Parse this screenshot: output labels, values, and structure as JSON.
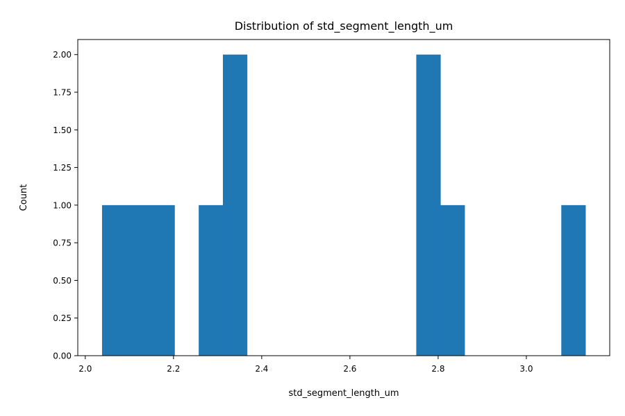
{
  "chart_data": {
    "type": "bar",
    "title": "Distribution of std_segment_length_um",
    "xlabel": "std_segment_length_um",
    "ylabel": "Count",
    "bins": [
      {
        "x0": 2.038,
        "x1": 2.0928,
        "count": 1
      },
      {
        "x0": 2.0928,
        "x1": 2.1476,
        "count": 1
      },
      {
        "x0": 2.1476,
        "x1": 2.2024,
        "count": 1
      },
      {
        "x0": 2.2024,
        "x1": 2.2572,
        "count": 0
      },
      {
        "x0": 2.2572,
        "x1": 2.312,
        "count": 1
      },
      {
        "x0": 2.312,
        "x1": 2.3668,
        "count": 2
      },
      {
        "x0": 2.3668,
        "x1": 2.4216,
        "count": 0
      },
      {
        "x0": 2.4216,
        "x1": 2.4764,
        "count": 0
      },
      {
        "x0": 2.4764,
        "x1": 2.5312,
        "count": 0
      },
      {
        "x0": 2.5312,
        "x1": 2.586,
        "count": 0
      },
      {
        "x0": 2.586,
        "x1": 2.6408,
        "count": 0
      },
      {
        "x0": 2.6408,
        "x1": 2.6956,
        "count": 0
      },
      {
        "x0": 2.6956,
        "x1": 2.7504,
        "count": 0
      },
      {
        "x0": 2.7504,
        "x1": 2.8052,
        "count": 2
      },
      {
        "x0": 2.8052,
        "x1": 2.86,
        "count": 1
      },
      {
        "x0": 2.86,
        "x1": 2.9148,
        "count": 0
      },
      {
        "x0": 2.9148,
        "x1": 2.9696,
        "count": 0
      },
      {
        "x0": 2.9696,
        "x1": 3.0244,
        "count": 0
      },
      {
        "x0": 3.0244,
        "x1": 3.0792,
        "count": 0
      },
      {
        "x0": 3.0792,
        "x1": 3.134,
        "count": 1
      }
    ],
    "xlim": [
      1.983,
      3.189
    ],
    "ylim": [
      0,
      2.1
    ],
    "xticks": [
      2.0,
      2.2,
      2.4,
      2.6,
      2.8,
      3.0
    ],
    "xtick_labels": [
      "2.0",
      "2.2",
      "2.4",
      "2.6",
      "2.8",
      "3.0"
    ],
    "yticks": [
      0,
      0.25,
      0.5,
      0.75,
      1.0,
      1.25,
      1.5,
      1.75,
      2.0
    ],
    "ytick_labels": [
      "0.00",
      "0.25",
      "0.50",
      "0.75",
      "1.00",
      "1.25",
      "1.50",
      "1.75",
      "2.00"
    ],
    "grid": false,
    "legend": "none",
    "bar_color": "#1f77b4"
  }
}
